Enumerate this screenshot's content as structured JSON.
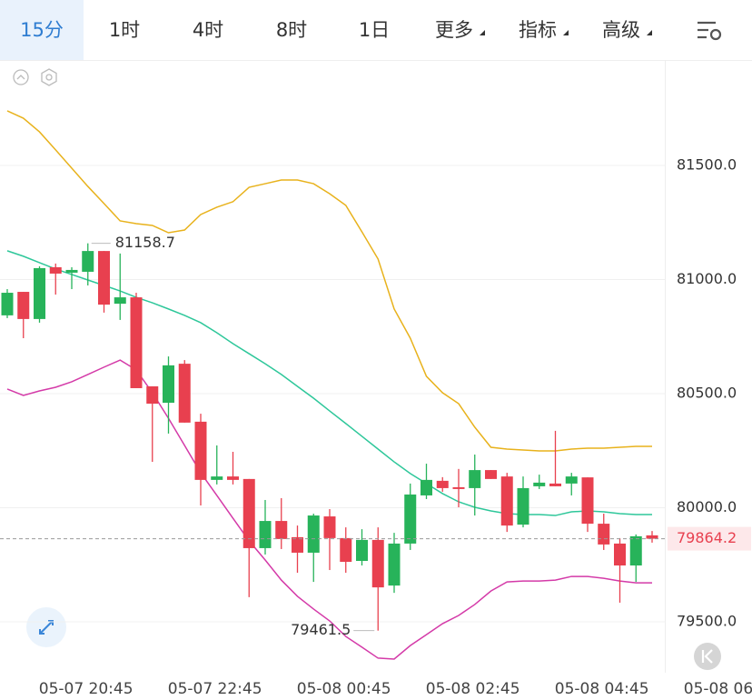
{
  "tabs": [
    "15分",
    "1时",
    "4时",
    "8时",
    "1日",
    "更多",
    "指标",
    "高级"
  ],
  "chart_data": {
    "type": "candlestick",
    "categories": [
      null,
      null,
      null,
      null,
      null,
      "05-07 20:45",
      null,
      null,
      null,
      null,
      null,
      null,
      null,
      "05-07 22:45",
      null,
      null,
      null,
      null,
      null,
      null,
      null,
      "05-08 00:45",
      null,
      null,
      null,
      null,
      null,
      null,
      null,
      "05-08 02:45",
      null,
      null,
      null,
      null,
      null,
      null,
      null,
      "05-08 04:45",
      null,
      null,
      null,
      null,
      null,
      null,
      null,
      "05-08 06"
    ],
    "open": [
      80843,
      80946,
      80827,
      81054,
      81030,
      81034,
      81125,
      80894,
      80922,
      80532,
      80460,
      80631,
      80377,
      80122,
      80137,
      80126,
      79823,
      79942,
      79871,
      79803,
      79962,
      79867,
      79767,
      79859,
      79659,
      79843,
      80054,
      80118,
      80090,
      80086,
      80165,
      80137,
      79926,
      80094,
      80106,
      80106,
      80133,
      79930,
      79843,
      79747,
      79879,
      null,
      null,
      null,
      null,
      null
    ],
    "high": [
      80958,
      80946,
      81058,
      81070,
      81054,
      81158.7,
      81125,
      81114,
      80942,
      80532,
      80663,
      80647,
      80412,
      80273,
      80245,
      80126,
      80034,
      80042,
      79922,
      79974,
      79994,
      79914,
      79906,
      79914,
      79890,
      80106,
      80193,
      80134,
      80170,
      80233,
      80165,
      80153,
      80137,
      80145,
      80337,
      80153,
      80133,
      79974,
      79867,
      79883,
      79898,
      null,
      null,
      null,
      null,
      null
    ],
    "low": [
      80831,
      80743,
      80811,
      80934,
      80958,
      80974,
      80855,
      80823,
      80524,
      80201,
      80325,
      80373,
      80010,
      80102,
      80102,
      79608,
      79795,
      79819,
      79715,
      79675,
      79727,
      79715,
      79747,
      79461.5,
      79627,
      79815,
      80038,
      80070,
      80002,
      79966,
      80126,
      79894,
      79914,
      80082,
      80094,
      80054,
      79894,
      79815,
      79584,
      79675,
      79847,
      null,
      null,
      null,
      null,
      null
    ],
    "close": [
      80942,
      80827,
      81050,
      81026,
      81042,
      81125,
      80890,
      80922,
      80524,
      80456,
      80624,
      80373,
      80122,
      80137,
      80122,
      79823,
      79942,
      79863,
      79803,
      79966,
      79867,
      79763,
      79859,
      79651,
      79843,
      80058,
      80122,
      80086,
      80082,
      80165,
      80126,
      79922,
      80086,
      80110,
      80094,
      80137,
      79930,
      79839,
      79747,
      79875,
      79864.2,
      null,
      null,
      null,
      null,
      null
    ],
    "up_color": "#27b35a",
    "down_color": "#e8404f",
    "bands": [
      {
        "color": "#e8b21c",
        "values": [
          81739,
          81707,
          81647,
          81568,
          81488,
          81408,
          81333,
          81257,
          81245,
          81237,
          81205,
          81217,
          81285,
          81317,
          81341,
          81404,
          81420,
          81436,
          81436,
          81420,
          81376,
          81325,
          81209,
          81090,
          80871,
          80743,
          80576,
          80504,
          80456,
          80353,
          80265,
          80257,
          80253,
          80249,
          80249,
          80257,
          80261,
          80261,
          80265,
          80269,
          80269,
          null,
          null,
          null,
          null,
          null
        ]
      },
      {
        "color": "#2ec79a",
        "values": [
          81126,
          81102,
          81074,
          81046,
          81022,
          80998,
          80974,
          80950,
          80922,
          80898,
          80871,
          80843,
          80811,
          80767,
          80719,
          80675,
          80631,
          80584,
          80532,
          80480,
          80424,
          80369,
          80313,
          80257,
          80201,
          80150,
          80106,
          80062,
          80026,
          80002,
          79986,
          79974,
          79970,
          79970,
          79966,
          79982,
          79986,
          79982,
          79974,
          79970,
          79970,
          null,
          null,
          null,
          null,
          null
        ]
      },
      {
        "color": "#d43aa8",
        "values": [
          80520,
          80492,
          80512,
          80528,
          80552,
          80584,
          80616,
          80647,
          80604,
          80504,
          80392,
          80273,
          80153,
          80054,
          79954,
          79855,
          79771,
          79683,
          79612,
          79556,
          79504,
          79436,
          79389,
          79341,
          79337,
          79396,
          79444,
          79492,
          79528,
          79576,
          79635,
          79675,
          79679,
          79679,
          79683,
          79699,
          79699,
          79691,
          79679,
          79671,
          79671,
          null,
          null,
          null,
          null,
          null
        ]
      }
    ],
    "ylim": [
      79277,
      81962
    ],
    "yticks": [
      {
        "value": 79500,
        "label": "79500.0"
      },
      {
        "value": 80000,
        "label": "80000.0"
      },
      {
        "value": 80500,
        "label": "80500.0"
      },
      {
        "value": 81000,
        "label": "81000.0"
      },
      {
        "value": 81500,
        "label": "81500.0"
      }
    ],
    "grid": true
  }
}
